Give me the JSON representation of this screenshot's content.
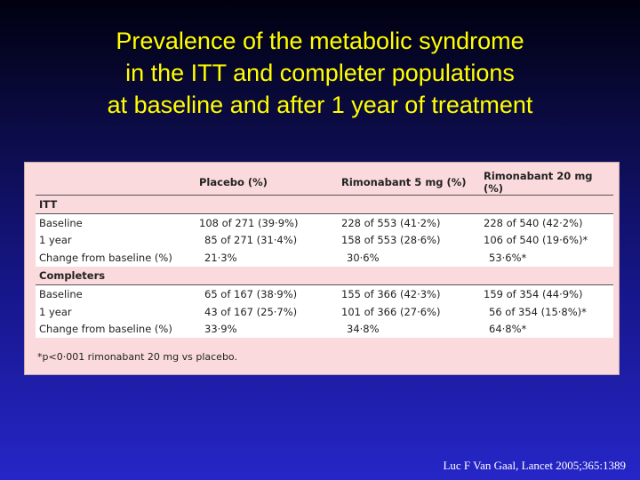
{
  "slide": {
    "title_lines": [
      "Prevalence of the metabolic syndrome",
      "in the ITT and completer populations",
      "at baseline and after 1 year of treatment"
    ],
    "citation": "Luc F Van Gaal, Lancet 2005;365:1389",
    "colors": {
      "title": "#ffff00",
      "background_top": "#000010",
      "background_bottom": "#2626c8",
      "panel": "#fadadd"
    }
  },
  "table": {
    "headers": [
      "",
      "Placebo (%)",
      "Rimonabant 5 mg (%)",
      "Rimonabant 20 mg (%)"
    ],
    "sections": [
      {
        "label": "ITT",
        "rows": [
          [
            "Baseline",
            "108 of 271 (39·9%)",
            "228 of 553 (41·2%)",
            "228 of 540 (42·2%)"
          ],
          [
            "1 year",
            "85 of 271 (31·4%)",
            "158 of 553 (28·6%)",
            "106 of 540 (19·6%)*"
          ],
          [
            "Change from baseline (%)",
            "21·3%",
            "30·6%",
            "53·6%*"
          ]
        ]
      },
      {
        "label": "Completers",
        "rows": [
          [
            "Baseline",
            "65 of 167 (38·9%)",
            "155 of 366 (42·3%)",
            "159 of 354 (44·9%)"
          ],
          [
            "1 year",
            "43 of 167 (25·7%)",
            "101 of 366 (27·6%)",
            "56 of 354 (15·8%)*"
          ],
          [
            "Change from baseline (%)",
            "33·9%",
            "34·8%",
            "64·8%*"
          ]
        ]
      }
    ],
    "footnote": "*p<0·001 rimonabant 20 mg vs placebo."
  }
}
